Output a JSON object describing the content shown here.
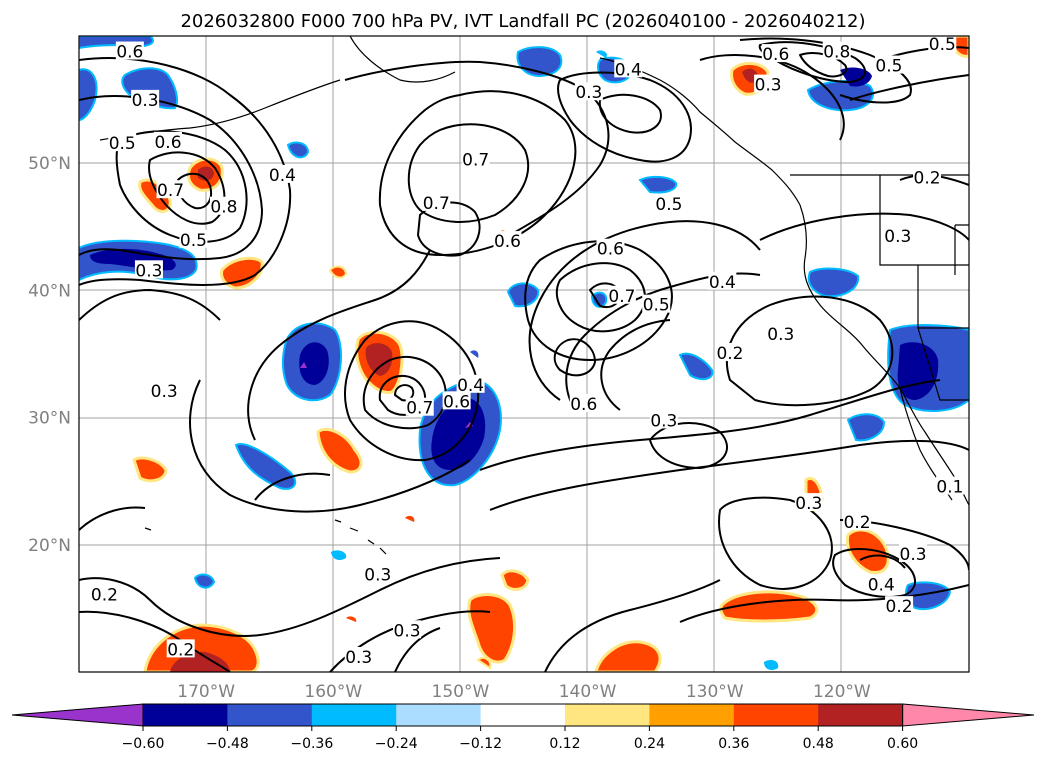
{
  "title": "2026032800 F000 700 hPa PV, IVT Landfall PC (2026040100 - 2026040212)",
  "map": {
    "lat_range": [
      10,
      60
    ],
    "lon_range": [
      -180,
      -110
    ],
    "lat_ticks": [
      {
        "value": 20,
        "label": "20°N"
      },
      {
        "value": 30,
        "label": "30°N"
      },
      {
        "value": 40,
        "label": "40°N"
      },
      {
        "value": 50,
        "label": "50°N"
      }
    ],
    "lon_ticks": [
      {
        "value": -170,
        "label": "170°W"
      },
      {
        "value": -160,
        "label": "160°W"
      },
      {
        "value": -150,
        "label": "150°W"
      },
      {
        "value": -140,
        "label": "140°W"
      },
      {
        "value": -130,
        "label": "130°W"
      },
      {
        "value": -120,
        "label": "120°W"
      }
    ],
    "contour_labels": [
      {
        "text": "0.6",
        "lon": -176,
        "lat": 58.7
      },
      {
        "text": "0.5",
        "lon": -176.6,
        "lat": 51.5
      },
      {
        "text": "0.6",
        "lon": -173,
        "lat": 51.6
      },
      {
        "text": "0.7",
        "lon": -172.8,
        "lat": 47.8
      },
      {
        "text": "0.8",
        "lon": -168.6,
        "lat": 46.5
      },
      {
        "text": "0.4",
        "lon": -164,
        "lat": 49
      },
      {
        "text": "0.5",
        "lon": -171,
        "lat": 43.9
      },
      {
        "text": "0.3",
        "lon": -174.5,
        "lat": 41.5
      },
      {
        "text": "0.3",
        "lon": -174.8,
        "lat": 54.9
      },
      {
        "text": "0.7",
        "lon": -148.8,
        "lat": 50.2
      },
      {
        "text": "0.7",
        "lon": -151.9,
        "lat": 46.8
      },
      {
        "text": "0.6",
        "lon": -146.3,
        "lat": 43.8
      },
      {
        "text": "0.5",
        "lon": -133.6,
        "lat": 46.7
      },
      {
        "text": "0.6",
        "lon": -138.2,
        "lat": 43.2
      },
      {
        "text": "0.7",
        "lon": -137.3,
        "lat": 39.5
      },
      {
        "text": "0.5",
        "lon": -134.6,
        "lat": 38.8
      },
      {
        "text": "0.4",
        "lon": -129.4,
        "lat": 40.6
      },
      {
        "text": "0.2",
        "lon": -128.8,
        "lat": 35
      },
      {
        "text": "0.6",
        "lon": -150.3,
        "lat": 31.2
      },
      {
        "text": "0.7",
        "lon": -153.2,
        "lat": 30.7
      },
      {
        "text": "0.4",
        "lon": -149.2,
        "lat": 32.5
      },
      {
        "text": "0.3",
        "lon": -173.3,
        "lat": 32
      },
      {
        "text": "0.6",
        "lon": -140.3,
        "lat": 31
      },
      {
        "text": "0.3",
        "lon": -134,
        "lat": 29.7
      },
      {
        "text": "0.3",
        "lon": -124.8,
        "lat": 36.5
      },
      {
        "text": "0.3",
        "lon": -122.6,
        "lat": 23.2
      },
      {
        "text": "0.4",
        "lon": -136.8,
        "lat": 57.3
      },
      {
        "text": "0.3",
        "lon": -139.9,
        "lat": 55.5
      },
      {
        "text": "0.6",
        "lon": -125.2,
        "lat": 58.5
      },
      {
        "text": "0.8",
        "lon": -120.4,
        "lat": 58.7
      },
      {
        "text": "0.3",
        "lon": -125.8,
        "lat": 56.1
      },
      {
        "text": "0.5",
        "lon": -116.3,
        "lat": 57.6
      },
      {
        "text": "0.5",
        "lon": -112.1,
        "lat": 59.3
      },
      {
        "text": "0.2",
        "lon": -113.3,
        "lat": 48.8
      },
      {
        "text": "0.3",
        "lon": -115.6,
        "lat": 44.2
      },
      {
        "text": "0.2",
        "lon": -118.8,
        "lat": 21.7
      },
      {
        "text": "0.3",
        "lon": -114.4,
        "lat": 19.2
      },
      {
        "text": "0.4",
        "lon": -116.9,
        "lat": 16.8
      },
      {
        "text": "0.2",
        "lon": -115.5,
        "lat": 15.1
      },
      {
        "text": "0.3",
        "lon": -156.5,
        "lat": 17.6
      },
      {
        "text": "0.3",
        "lon": -154.2,
        "lat": 13.2
      },
      {
        "text": "0.3",
        "lon": -158,
        "lat": 11.1
      },
      {
        "text": "0.2",
        "lon": -178,
        "lat": 16
      },
      {
        "text": "0.2",
        "lon": -172,
        "lat": 11.7
      },
      {
        "text": "0.1",
        "lon": -111.5,
        "lat": 24.5
      }
    ]
  },
  "colorbar": {
    "colors": [
      "#9933cc",
      "#000099",
      "#3355cc",
      "#00bbff",
      "#aaddff",
      "#ffffff",
      "#ffe680",
      "#ffa000",
      "#ff4400",
      "#b22222",
      "#ff88aa"
    ],
    "tick_labels": [
      "−0.60",
      "−0.48",
      "−0.36",
      "−0.24",
      "−0.12",
      "0.12",
      "0.24",
      "0.36",
      "0.48",
      "0.60"
    ]
  }
}
